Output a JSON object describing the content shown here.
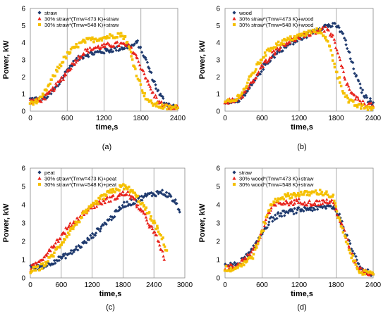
{
  "colors": {
    "navy": "#1F3A6E",
    "red": "#E8231C",
    "yellow": "#F5C000"
  },
  "chart_data": [
    {
      "type": "scatter",
      "caption": "(a)",
      "xlabel": "time,s",
      "ylabel": "Power, kW",
      "xlim": [
        0,
        2400
      ],
      "ylim": [
        0,
        6
      ],
      "xticks": [
        0,
        600,
        1200,
        1800,
        2400
      ],
      "yticks": [
        0,
        1,
        2,
        3,
        4,
        5,
        6
      ],
      "vgrid": [
        600,
        1200,
        1800
      ],
      "legend_position": "top-left",
      "series": [
        {
          "name": "straw",
          "color": "#1F3A6E",
          "marker": "diamond",
          "points": [
            [
              0,
              0.7
            ],
            [
              150,
              0.7
            ],
            [
              300,
              0.9
            ],
            [
              450,
              1.5
            ],
            [
              600,
              2.4
            ],
            [
              750,
              3.0
            ],
            [
              900,
              3.3
            ],
            [
              1050,
              3.4
            ],
            [
              1200,
              3.5
            ],
            [
              1350,
              3.6
            ],
            [
              1500,
              3.7
            ],
            [
              1650,
              3.8
            ],
            [
              1750,
              4.0
            ],
            [
              1800,
              3.6
            ],
            [
              1900,
              2.8
            ],
            [
              2000,
              1.8
            ],
            [
              2100,
              1.0
            ],
            [
              2200,
              0.5
            ],
            [
              2300,
              0.3
            ],
            [
              2400,
              0.2
            ]
          ]
        },
        {
          "name": "30% straw*(Tmw=473 K)+straw",
          "color": "#E8231C",
          "marker": "triangle",
          "points": [
            [
              0,
              0.6
            ],
            [
              150,
              0.6
            ],
            [
              300,
              1.0
            ],
            [
              450,
              1.6
            ],
            [
              600,
              2.3
            ],
            [
              750,
              3.0
            ],
            [
              900,
              3.5
            ],
            [
              1050,
              3.7
            ],
            [
              1200,
              3.8
            ],
            [
              1350,
              3.9
            ],
            [
              1500,
              3.9
            ],
            [
              1600,
              3.8
            ],
            [
              1700,
              3.4
            ],
            [
              1800,
              2.6
            ],
            [
              1900,
              1.8
            ],
            [
              2000,
              1.0
            ],
            [
              2100,
              0.5
            ],
            [
              2200,
              0.3
            ],
            [
              2300,
              0.2
            ],
            [
              2400,
              0.2
            ]
          ]
        },
        {
          "name": "30% straw*(Tmw=548 K)+straw",
          "color": "#F5C000",
          "marker": "square",
          "points": [
            [
              0,
              0.5
            ],
            [
              150,
              0.6
            ],
            [
              300,
              1.5
            ],
            [
              450,
              2.5
            ],
            [
              600,
              3.3
            ],
            [
              750,
              3.8
            ],
            [
              900,
              4.1
            ],
            [
              1050,
              4.2
            ],
            [
              1200,
              4.3
            ],
            [
              1350,
              4.4
            ],
            [
              1450,
              4.5
            ],
            [
              1550,
              4.3
            ],
            [
              1650,
              3.2
            ],
            [
              1750,
              2.0
            ],
            [
              1850,
              1.0
            ],
            [
              1950,
              0.5
            ],
            [
              2100,
              0.3
            ],
            [
              2250,
              0.2
            ],
            [
              2400,
              0.2
            ]
          ]
        }
      ]
    },
    {
      "type": "scatter",
      "caption": "(b)",
      "xlabel": "time,s",
      "ylabel": "Power, kW",
      "xlim": [
        0,
        2400
      ],
      "ylim": [
        0,
        6
      ],
      "xticks": [
        0,
        600,
        1200,
        1800,
        2400
      ],
      "yticks": [
        0,
        1,
        2,
        3,
        4,
        5,
        6
      ],
      "vgrid": [
        600,
        1200,
        1800
      ],
      "legend_position": "top-left",
      "series": [
        {
          "name": "wood",
          "color": "#1F3A6E",
          "marker": "diamond",
          "points": [
            [
              0,
              0.6
            ],
            [
              150,
              0.6
            ],
            [
              300,
              0.8
            ],
            [
              450,
              1.6
            ],
            [
              600,
              2.5
            ],
            [
              750,
              3.1
            ],
            [
              900,
              3.6
            ],
            [
              1050,
              3.9
            ],
            [
              1200,
              4.2
            ],
            [
              1350,
              4.5
            ],
            [
              1500,
              4.8
            ],
            [
              1650,
              5.0
            ],
            [
              1800,
              5.0
            ],
            [
              1900,
              4.6
            ],
            [
              2000,
              3.5
            ],
            [
              2100,
              2.3
            ],
            [
              2200,
              1.3
            ],
            [
              2300,
              0.7
            ],
            [
              2400,
              0.5
            ]
          ]
        },
        {
          "name": "30% straw*(Tmw=473 K)+wood",
          "color": "#E8231C",
          "marker": "triangle",
          "points": [
            [
              0,
              0.6
            ],
            [
              150,
              0.6
            ],
            [
              300,
              1.0
            ],
            [
              450,
              1.7
            ],
            [
              600,
              2.6
            ],
            [
              750,
              3.3
            ],
            [
              900,
              3.8
            ],
            [
              1050,
              4.1
            ],
            [
              1200,
              4.3
            ],
            [
              1350,
              4.5
            ],
            [
              1500,
              4.7
            ],
            [
              1650,
              4.8
            ],
            [
              1750,
              4.3
            ],
            [
              1850,
              3.1
            ],
            [
              1950,
              1.8
            ],
            [
              2050,
              1.0
            ],
            [
              2200,
              0.5
            ],
            [
              2400,
              0.3
            ]
          ]
        },
        {
          "name": "30% straw*(Tmw=548 K)+wood",
          "color": "#F5C000",
          "marker": "square",
          "points": [
            [
              0,
              0.5
            ],
            [
              150,
              0.6
            ],
            [
              300,
              1.2
            ],
            [
              450,
              2.2
            ],
            [
              600,
              3.1
            ],
            [
              750,
              3.7
            ],
            [
              900,
              4.0
            ],
            [
              1050,
              4.2
            ],
            [
              1200,
              4.4
            ],
            [
              1350,
              4.6
            ],
            [
              1500,
              4.7
            ],
            [
              1600,
              4.5
            ],
            [
              1700,
              3.7
            ],
            [
              1800,
              2.4
            ],
            [
              1900,
              1.3
            ],
            [
              2000,
              0.6
            ],
            [
              2150,
              0.3
            ],
            [
              2300,
              0.2
            ],
            [
              2400,
              0.2
            ]
          ]
        }
      ]
    },
    {
      "type": "scatter",
      "caption": "(c)",
      "xlabel": "time,s",
      "ylabel": "Power, kW",
      "xlim": [
        0,
        3000
      ],
      "ylim": [
        0,
        6
      ],
      "xticks": [
        0,
        600,
        1200,
        1800,
        2400,
        3000
      ],
      "yticks": [
        0,
        1,
        2,
        3,
        4,
        5,
        6
      ],
      "vgrid": [
        600,
        1200,
        1800,
        2400
      ],
      "legend_position": "top-left",
      "series": [
        {
          "name": "peat",
          "color": "#1F3A6E",
          "marker": "diamond",
          "points": [
            [
              0,
              0.6
            ],
            [
              150,
              0.6
            ],
            [
              300,
              0.7
            ],
            [
              450,
              0.9
            ],
            [
              600,
              1.1
            ],
            [
              750,
              1.3
            ],
            [
              900,
              1.6
            ],
            [
              1050,
              1.9
            ],
            [
              1200,
              2.3
            ],
            [
              1350,
              2.7
            ],
            [
              1500,
              3.1
            ],
            [
              1650,
              3.5
            ],
            [
              1800,
              4.0
            ],
            [
              1950,
              4.1
            ],
            [
              2100,
              4.3
            ],
            [
              2250,
              4.5
            ],
            [
              2400,
              4.6
            ],
            [
              2550,
              4.7
            ],
            [
              2700,
              4.5
            ],
            [
              2850,
              4.0
            ],
            [
              2900,
              3.6
            ]
          ]
        },
        {
          "name": "30% straw*(Tmw=473 K)+peat",
          "color": "#E8231C",
          "marker": "triangle",
          "points": [
            [
              0,
              0.5
            ],
            [
              150,
              0.8
            ],
            [
              300,
              1.3
            ],
            [
              450,
              1.8
            ],
            [
              600,
              2.3
            ],
            [
              750,
              2.8
            ],
            [
              900,
              3.2
            ],
            [
              1050,
              3.6
            ],
            [
              1200,
              3.9
            ],
            [
              1350,
              4.1
            ],
            [
              1500,
              4.3
            ],
            [
              1650,
              4.4
            ],
            [
              1800,
              4.6
            ],
            [
              1900,
              4.6
            ],
            [
              2000,
              4.3
            ],
            [
              2150,
              3.7
            ],
            [
              2300,
              3.0
            ],
            [
              2450,
              2.2
            ],
            [
              2550,
              1.5
            ],
            [
              2600,
              1.0
            ]
          ]
        },
        {
          "name": "30% straw*(Tmw=548 K)+peat",
          "color": "#F5C000",
          "marker": "square",
          "points": [
            [
              0,
              0.4
            ],
            [
              150,
              0.5
            ],
            [
              300,
              0.8
            ],
            [
              450,
              1.3
            ],
            [
              600,
              1.9
            ],
            [
              750,
              2.5
            ],
            [
              900,
              3.0
            ],
            [
              1050,
              3.5
            ],
            [
              1200,
              3.9
            ],
            [
              1350,
              4.3
            ],
            [
              1500,
              4.6
            ],
            [
              1650,
              4.8
            ],
            [
              1800,
              5.0
            ],
            [
              1950,
              4.8
            ],
            [
              2100,
              4.3
            ],
            [
              2250,
              3.7
            ],
            [
              2400,
              3.0
            ],
            [
              2550,
              2.2
            ],
            [
              2650,
              1.5
            ]
          ]
        }
      ]
    },
    {
      "type": "scatter",
      "caption": "(d)",
      "xlabel": "time,s",
      "ylabel": "Power, kW",
      "xlim": [
        0,
        2400
      ],
      "ylim": [
        0,
        6
      ],
      "xticks": [
        0,
        600,
        1200,
        1800,
        2400
      ],
      "yticks": [
        0,
        1,
        2,
        3,
        4,
        5,
        6
      ],
      "vgrid": [
        600,
        1200,
        1800
      ],
      "legend_position": "top-left",
      "series": [
        {
          "name": "straw",
          "color": "#1F3A6E",
          "marker": "diamond",
          "points": [
            [
              0,
              0.7
            ],
            [
              150,
              0.7
            ],
            [
              300,
              1.0
            ],
            [
              450,
              1.5
            ],
            [
              600,
              2.5
            ],
            [
              750,
              3.2
            ],
            [
              900,
              3.5
            ],
            [
              1050,
              3.6
            ],
            [
              1200,
              3.7
            ],
            [
              1350,
              3.8
            ],
            [
              1500,
              3.8
            ],
            [
              1650,
              3.9
            ],
            [
              1750,
              3.9
            ],
            [
              1850,
              3.4
            ],
            [
              1950,
              2.5
            ],
            [
              2050,
              1.6
            ],
            [
              2150,
              0.9
            ],
            [
              2250,
              0.4
            ],
            [
              2400,
              0.2
            ]
          ]
        },
        {
          "name": "30% wood*(Tmw=473 K)+straw",
          "color": "#E8231C",
          "marker": "triangle",
          "points": [
            [
              0,
              0.6
            ],
            [
              150,
              0.6
            ],
            [
              300,
              1.0
            ],
            [
              450,
              1.4
            ],
            [
              600,
              2.5
            ],
            [
              700,
              3.5
            ],
            [
              800,
              4.0
            ],
            [
              900,
              4.1
            ],
            [
              1050,
              4.1
            ],
            [
              1200,
              4.2
            ],
            [
              1350,
              4.1
            ],
            [
              1500,
              4.1
            ],
            [
              1650,
              4.2
            ],
            [
              1750,
              4.1
            ],
            [
              1850,
              3.3
            ],
            [
              1950,
              2.3
            ],
            [
              2050,
              1.3
            ],
            [
              2150,
              0.6
            ],
            [
              2300,
              0.3
            ],
            [
              2400,
              0.2
            ]
          ]
        },
        {
          "name": "30% wood*(Tmw=548 K)+straw",
          "color": "#F5C000",
          "marker": "square",
          "points": [
            [
              0,
              0.5
            ],
            [
              150,
              0.5
            ],
            [
              300,
              0.8
            ],
            [
              450,
              1.2
            ],
            [
              600,
              2.5
            ],
            [
              700,
              3.7
            ],
            [
              800,
              4.2
            ],
            [
              900,
              4.4
            ],
            [
              1050,
              4.5
            ],
            [
              1200,
              4.6
            ],
            [
              1350,
              4.6
            ],
            [
              1500,
              4.7
            ],
            [
              1650,
              4.6
            ],
            [
              1750,
              4.4
            ],
            [
              1850,
              3.2
            ],
            [
              1950,
              2.1
            ],
            [
              2050,
              1.2
            ],
            [
              2150,
              0.5
            ],
            [
              2300,
              0.2
            ],
            [
              2400,
              0.2
            ]
          ]
        }
      ]
    }
  ]
}
